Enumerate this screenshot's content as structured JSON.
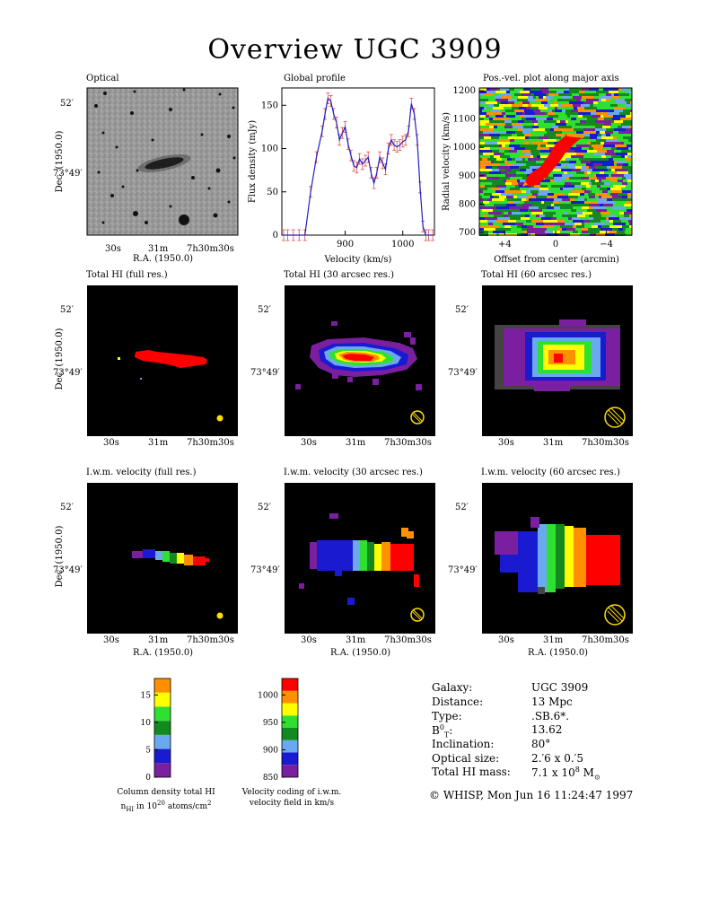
{
  "title": "Overview UGC 3909",
  "axis_text": {
    "dec": "Dec. (1950.0)",
    "ra": "R.A. (1950.0)",
    "dec_tick_top": "52′",
    "dec_tick_mid": "73°49′",
    "ra_tick_1": "30s",
    "ra_tick_2": "31m",
    "ra_tick_3": "7h30m30s"
  },
  "panels": {
    "optical": "Optical",
    "global_profile": "Global profile",
    "posvel": "Pos.-vel. plot along major axis",
    "total_full": "Total HI (full res.)",
    "total_30": "Total HI (30 arcsec res.)",
    "total_60": "Total HI (60 arcsec res.)",
    "vel_full": "I.w.m. velocity (full res.)",
    "vel_30": "I.w.m. velocity (30 arcsec res.)",
    "vel_60": "I.w.m. velocity (60 arcsec res.)"
  },
  "chart_data": [
    {
      "type": "line",
      "title": "Global profile",
      "xlabel": "Velocity (km/s)",
      "ylabel": "Flux density (mJy)",
      "xlim": [
        790,
        1055
      ],
      "ylim": [
        0,
        170
      ],
      "xticks": [
        900,
        1000
      ],
      "yticks": [
        0,
        50,
        100,
        150
      ],
      "x": [
        793,
        800,
        810,
        820,
        830,
        840,
        850,
        860,
        865,
        870,
        875,
        880,
        885,
        890,
        895,
        900,
        905,
        910,
        915,
        920,
        925,
        930,
        935,
        940,
        945,
        950,
        955,
        960,
        965,
        970,
        975,
        980,
        985,
        990,
        995,
        1000,
        1005,
        1010,
        1015,
        1020,
        1025,
        1030,
        1035,
        1040,
        1045,
        1052
      ],
      "values": [
        0,
        0,
        0,
        0,
        0,
        50,
        90,
        120,
        140,
        158,
        155,
        140,
        130,
        110,
        118,
        125,
        105,
        92,
        80,
        78,
        88,
        82,
        86,
        90,
        72,
        60,
        72,
        90,
        83,
        76,
        100,
        110,
        104,
        102,
        104,
        108,
        110,
        120,
        152,
        140,
        110,
        55,
        10,
        0,
        0,
        0
      ]
    },
    {
      "type": "heatmap",
      "title": "Pos.-vel. plot along major axis",
      "xlabel": "Offset from center (arcmin)",
      "ylabel": "Radial velocity (km/s)",
      "xticks": [
        4,
        0,
        -4
      ],
      "xtick_labels": [
        "+4",
        "0",
        "−4"
      ],
      "ylim": [
        690,
        1210
      ],
      "yticks": [
        700,
        800,
        900,
        1000,
        1100,
        1200
      ]
    },
    {
      "type": "heatmap",
      "title": "Column density total HI",
      "colorbar": {
        "ticks": [
          0,
          5,
          10,
          15
        ],
        "range": [
          0,
          18
        ],
        "colors": [
          "#7a1fa0",
          "#1a1ad0",
          "#6aa8f0",
          "#128a20",
          "#30e030",
          "#ffff00",
          "#ff9000"
        ]
      },
      "caption_line1": "Column density total HI",
      "caption_line2": "n",
      "caption_line2_sub": "HI",
      "caption_line2_rest": " in 10",
      "caption_line2_sup": "20",
      "caption_line2_tail": " atoms/cm",
      "caption_line2_sup2": "2"
    },
    {
      "type": "heatmap",
      "title": "Velocity coding of i.w.m. velocity field in km/s",
      "colorbar": {
        "ticks": [
          850,
          900,
          950,
          1000
        ],
        "range": [
          850,
          1030
        ],
        "colors": [
          "#7a1fa0",
          "#1a1ad0",
          "#6aa8f0",
          "#128a20",
          "#30e030",
          "#ffff00",
          "#ff9000",
          "#ff0000"
        ]
      },
      "caption_line1": "Velocity coding of i.w.m.",
      "caption_line2": "velocity field in km/s"
    }
  ],
  "info": {
    "galaxy_label": "Galaxy:",
    "galaxy_value": "UGC 3909",
    "distance_label": "Distance:",
    "distance_value": "13 Mpc",
    "type_label": "Type:",
    "type_value": ".SB.6*.",
    "bt_label": "B",
    "bt_sup": "0",
    "bt_sub": "T",
    "bt_colon": ":",
    "bt_value": "13.62",
    "incl_label": "Inclination:",
    "incl_value": "80°",
    "optsize_label": "Optical size:",
    "optsize_value": "2.′6 x 0.′5",
    "himass_label": "Total HI mass:",
    "himass_value": "7.1 x 10",
    "himass_exp": "8",
    "himass_unit": " M",
    "himass_unit_sub": "⊙"
  },
  "credit": "© WHISP, Mon Jun 16 11:24:47 1997",
  "colors": {
    "red": "#ff0000",
    "orange": "#ff9000",
    "yellow": "#ffff00",
    "lightgreen": "#30e030",
    "green": "#128a20",
    "lightblue": "#6aa8f0",
    "blue": "#1a1ad0",
    "purple": "#7a1fa0",
    "grey": "#444444"
  }
}
